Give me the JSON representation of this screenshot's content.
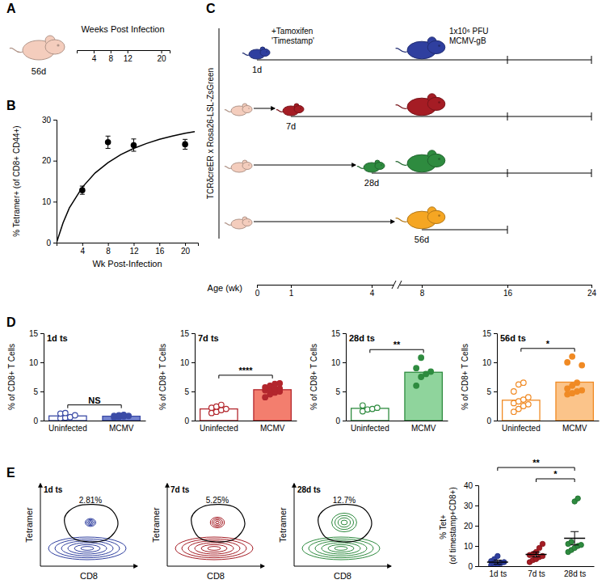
{
  "chart_data": [
    {
      "type": "scatter",
      "panel_label": "B",
      "x": [
        4,
        8,
        12,
        20
      ],
      "values": [
        12.8,
        24.5,
        23.8,
        24.0
      ],
      "errors": [
        1.0,
        1.5,
        1.5,
        1.2
      ],
      "color": "#000000",
      "marker": "circle",
      "fit": {
        "type": "line",
        "x": [
          0,
          1,
          2,
          4,
          6,
          8,
          10,
          12,
          14,
          16,
          18,
          20,
          21.5
        ],
        "values": [
          0,
          4.8,
          8.5,
          13.5,
          17,
          19.5,
          21.5,
          23,
          24.2,
          25.2,
          26,
          26.7,
          27.1
        ]
      },
      "xlabel": "Wk Post-Infection",
      "ylabel": "% Tetramer+ (of CD8+ CD44+)",
      "xlim": [
        0,
        22
      ],
      "ylim": [
        0,
        30
      ],
      "xticks": [
        4,
        8,
        12,
        16,
        20
      ],
      "yticks": [
        0,
        10,
        20,
        30
      ]
    },
    {
      "type": "bar",
      "panel_label": "D",
      "title": "1d ts",
      "categories": [
        "Uninfected",
        "MCMV"
      ],
      "values": [
        0.8,
        0.75
      ],
      "points": [
        [
          0.4,
          0.5,
          0.6,
          0.9,
          1.2,
          1.3
        ],
        [
          0.5,
          0.6,
          0.7,
          0.8,
          0.8,
          0.9,
          1.0
        ]
      ],
      "color": "#3b4ba6",
      "colors": [
        "#ffffff",
        "#7584cf"
      ],
      "ylabel": "% of CD8+ T Cells",
      "ylim": [
        0,
        15
      ],
      "yticks": [
        0,
        5,
        10,
        15
      ],
      "annotations": [
        {
          "text": "NS",
          "between": [
            "Uninfected",
            "MCMV"
          ]
        }
      ]
    },
    {
      "type": "bar",
      "title": "7d ts",
      "categories": [
        "Uninfected",
        "MCMV"
      ],
      "values": [
        2.0,
        5.3
      ],
      "points": [
        [
          1.3,
          1.5,
          1.8,
          2.0,
          2.2,
          2.4,
          2.7
        ],
        [
          4.0,
          4.5,
          4.8,
          5.0,
          5.2,
          5.3,
          5.4,
          5.5,
          5.7,
          6.0,
          6.3,
          6.4
        ]
      ],
      "color": "#b3262d",
      "colors": [
        "#ffffff",
        "#f37e6e"
      ],
      "ylabel": "% of CD8+ T Cells",
      "ylim": [
        0,
        15
      ],
      "yticks": [
        0,
        5,
        10,
        15
      ],
      "annotations": [
        {
          "text": "****",
          "between": [
            "Uninfected",
            "MCMV"
          ]
        }
      ]
    },
    {
      "type": "bar",
      "title": "28d ts",
      "categories": [
        "Uninfected",
        "MCMV"
      ],
      "values": [
        2.1,
        8.3
      ],
      "points": [
        [
          1.6,
          1.9,
          2.0,
          2.2,
          2.6
        ],
        [
          6.0,
          7.5,
          8.0,
          8.4,
          9.0,
          10.8
        ]
      ],
      "color": "#2e8b3f",
      "colors": [
        "#ffffff",
        "#8fd49c"
      ],
      "ylabel": "% of CD8+ T Cells",
      "ylim": [
        0,
        15
      ],
      "yticks": [
        0,
        5,
        10,
        15
      ],
      "annotations": [
        {
          "text": "**",
          "between": [
            "Uninfected",
            "MCMV"
          ]
        }
      ]
    },
    {
      "type": "bar",
      "title": "56d ts",
      "categories": [
        "Uninfected",
        "MCMV"
      ],
      "values": [
        3.5,
        6.6
      ],
      "points": [
        [
          1.5,
          2.0,
          2.5,
          2.8,
          3.0,
          3.3,
          3.6,
          4.0,
          5.0,
          6.2,
          6.5
        ],
        [
          4.5,
          4.7,
          5.0,
          5.2,
          5.5,
          6.0,
          6.5,
          9.5,
          10.0,
          11.0
        ]
      ],
      "color": "#f08a24",
      "colors": [
        "#ffffff",
        "#fbc48a"
      ],
      "ylabel": "% of CD8+ T Cells",
      "ylim": [
        0,
        15
      ],
      "yticks": [
        0,
        5,
        10,
        15
      ],
      "annotations": [
        {
          "text": "*",
          "between": [
            "Uninfected",
            "MCMV"
          ]
        }
      ]
    },
    {
      "type": "contour",
      "panel_label": "E",
      "title": "1d ts",
      "gate": {
        "value": 2.81,
        "label": "2.81%"
      },
      "color": "#2f3f9f",
      "xlabel": "CD8",
      "ylabel": "Tetramer",
      "tick_labels": false
    },
    {
      "type": "contour",
      "title": "7d ts",
      "gate": {
        "value": 5.25,
        "label": "5.25%"
      },
      "color": "#a51c24",
      "xlabel": "CD8",
      "ylabel": "Tetramer",
      "tick_labels": false
    },
    {
      "type": "contour",
      "title": "28d ts",
      "gate": {
        "value": 12.7,
        "label": "12.7%"
      },
      "color": "#2e8b3f",
      "xlabel": "CD8",
      "ylabel": "Tetramer",
      "tick_labels": false
    },
    {
      "type": "scatter",
      "categories": [
        "1d ts",
        "7d ts",
        "28d ts"
      ],
      "points": [
        [
          0.5,
          0.8,
          1.0,
          1.5,
          2.0,
          2.5,
          3.5,
          5.0
        ],
        [
          2.0,
          3.0,
          3.5,
          4.5,
          5.0,
          5.5,
          6.0,
          7.0,
          9.0,
          11.0
        ],
        [
          7.0,
          8.0,
          9.0,
          10.0,
          10.5,
          11.0,
          12.0,
          32.0,
          33.5
        ]
      ],
      "values": [
        2.0,
        5.8,
        13.8
      ],
      "errors": [
        1.0,
        1.2,
        3.3
      ],
      "colors": [
        "#2f3f9f",
        "#a51c24",
        "#2e8b3f"
      ],
      "ylabel": "% Tet+ (of timestamp+CD8+)",
      "ylim": [
        0,
        40
      ],
      "yticks": [
        0,
        10,
        20,
        30,
        40
      ],
      "annotations": [
        {
          "text": "**",
          "between": [
            "1d ts",
            "28d ts"
          ]
        },
        {
          "text": "*",
          "between": [
            "7d ts",
            "28d ts"
          ]
        }
      ]
    }
  ],
  "diagrams": {
    "A": {
      "panel_label": "A",
      "mouse_color": "#f4cdbd",
      "age_label": "56d",
      "timeline_label": "Weeks Post Infection",
      "xlim": [
        0,
        22
      ],
      "ticks": [
        4,
        8,
        12,
        20
      ]
    },
    "C": {
      "panel_label": "C",
      "strain": "TCRδcreER x Rosa26-LSL-ZsGreen",
      "base_color": "#f4cdbd",
      "treatment": [
        "+Tamoxifen",
        "'Timestamp'"
      ],
      "infection": [
        "1x10⁶ PFU",
        "MCMV-gB"
      ],
      "infection_age": 8,
      "age_label": "Age (wk)",
      "age_ticks": [
        0,
        1,
        4,
        8,
        16,
        24
      ],
      "rows": [
        {
          "label": "1d",
          "color": "#2f3f9f",
          "timestamp_age": 0,
          "end_age": 24
        },
        {
          "label": "7d",
          "color": "#a51c24",
          "timestamp_age": 1,
          "end_age": 24
        },
        {
          "label": "28d",
          "color": "#2e8b3f",
          "timestamp_age": 4,
          "end_age": 24
        },
        {
          "label": "56d",
          "color": "#f5a623",
          "timestamp_age": 8,
          "end_age": 16
        }
      ]
    }
  }
}
